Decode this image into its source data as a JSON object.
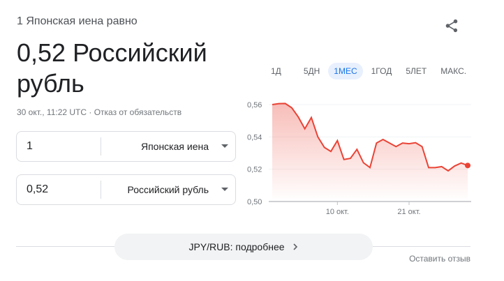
{
  "header": {
    "subtitle": "1 Японская иена равно",
    "result": "0,52 Российский рубль",
    "meta": "30 окт., 11:22 UTC · Отказ от обязательств"
  },
  "converter": [
    {
      "value": "1",
      "currency": "Японская иена"
    },
    {
      "value": "0,52",
      "currency": "Российский рубль"
    }
  ],
  "icons": {
    "share": "share-icon",
    "dropdown": "chevron-down-icon",
    "more": "chevron-right-icon"
  },
  "tabs": [
    {
      "label": "1Д"
    },
    {
      "label": "5ДН"
    },
    {
      "label": "1МЕС",
      "active": true
    },
    {
      "label": "1ГОД"
    },
    {
      "label": "5ЛЕТ"
    },
    {
      "label": "МАКС."
    }
  ],
  "more_label": "JPY/RUB: подробнее",
  "feedback": "Оставить отзыв",
  "colors": {
    "line": "#ea4335",
    "accent": "#1a73e8"
  },
  "chart_data": {
    "type": "area",
    "x": [
      "30.09",
      "01.10",
      "02.10",
      "03.10",
      "04.10",
      "05.10",
      "06.10",
      "07.10",
      "08.10",
      "09.10",
      "10.10",
      "11.10",
      "12.10",
      "13.10",
      "14.10",
      "15.10",
      "16.10",
      "17.10",
      "18.10",
      "19.10",
      "20.10",
      "21.10",
      "22.10",
      "23.10",
      "24.10",
      "25.10",
      "26.10",
      "27.10",
      "28.10",
      "29.10",
      "30.10"
    ],
    "values": [
      0.56,
      0.5606,
      0.5607,
      0.558,
      0.5523,
      0.545,
      0.552,
      0.54,
      0.5335,
      0.531,
      0.5377,
      0.526,
      0.5267,
      0.5323,
      0.524,
      0.521,
      0.5362,
      0.5384,
      0.5362,
      0.534,
      0.5362,
      0.5358,
      0.5364,
      0.534,
      0.521,
      0.521,
      0.5216,
      0.519,
      0.522,
      0.5238,
      0.5223
    ],
    "ylim": [
      0.5,
      0.56
    ],
    "yticks": [
      "0,56",
      "0,54",
      "0,52",
      "0,50"
    ],
    "xticks": [
      {
        "at": "10.10",
        "label": "10 окт."
      },
      {
        "at": "21.10",
        "label": "21 окт."
      }
    ],
    "grid": true
  }
}
